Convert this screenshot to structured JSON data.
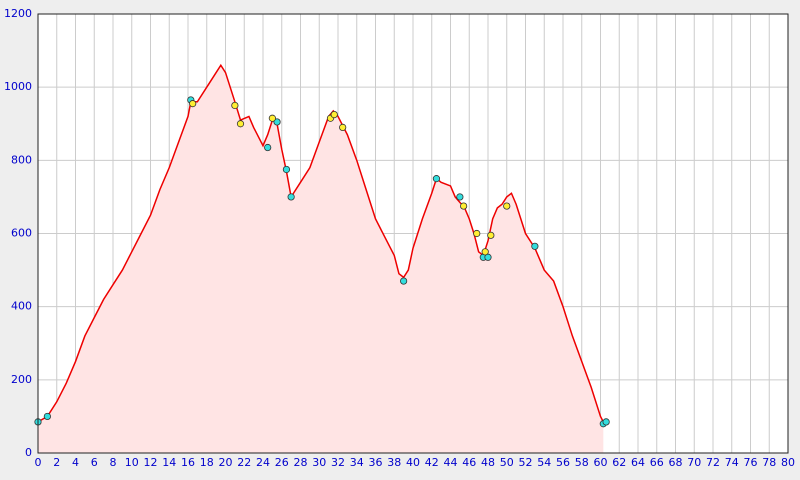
{
  "chart_data": {
    "type": "line",
    "x": [
      0,
      1,
      2,
      3,
      4,
      5,
      6,
      7,
      8,
      9,
      10,
      11,
      12,
      13,
      14,
      15,
      16,
      16.3,
      17,
      18,
      19,
      19.5,
      20,
      21,
      21.6,
      22.5,
      23,
      24,
      24.5,
      25,
      25.5,
      26,
      26.5,
      27,
      28,
      29,
      30,
      31,
      31.5,
      32,
      33,
      34,
      35,
      36,
      37,
      38,
      38.5,
      39,
      39.5,
      40,
      41,
      42,
      42.5,
      43,
      44,
      44.5,
      45,
      45.5,
      46,
      46.5,
      47,
      47.5,
      48,
      48.5,
      49,
      49.5,
      50,
      50.5,
      51,
      52,
      53,
      54,
      55,
      56,
      57,
      58,
      59,
      60,
      60.3
    ],
    "values": [
      85,
      100,
      140,
      190,
      250,
      320,
      370,
      420,
      460,
      500,
      550,
      600,
      650,
      720,
      780,
      850,
      920,
      960,
      960,
      1000,
      1040,
      1060,
      1040,
      960,
      910,
      920,
      890,
      840,
      870,
      910,
      900,
      830,
      770,
      700,
      740,
      780,
      850,
      920,
      935,
      920,
      870,
      800,
      720,
      640,
      590,
      540,
      490,
      480,
      500,
      560,
      640,
      710,
      750,
      740,
      730,
      700,
      685,
      670,
      640,
      600,
      550,
      540,
      580,
      640,
      670,
      680,
      700,
      710,
      680,
      600,
      560,
      500,
      470,
      400,
      320,
      250,
      180,
      100,
      85
    ],
    "color": "#ee0000",
    "fill_color": "#ffe4e4",
    "markers": [
      {
        "color": "#33dddd",
        "x": [
          0,
          1,
          16.3,
          24.5,
          25.5,
          26.5,
          27,
          39,
          42.5,
          45,
          47.5,
          48,
          53,
          60.3,
          60.6
        ],
        "values": [
          85,
          100,
          965,
          835,
          905,
          775,
          700,
          470,
          750,
          700,
          535,
          535,
          565,
          80,
          85
        ]
      },
      {
        "color": "#ffee33",
        "x": [
          16.5,
          21,
          21.6,
          25,
          31.2,
          31.6,
          32.5,
          45.4,
          46.8,
          47.7,
          48.3,
          50
        ],
        "values": [
          955,
          950,
          900,
          915,
          915,
          925,
          890,
          675,
          600,
          550,
          595,
          675
        ]
      }
    ],
    "xlim": [
      0,
      80
    ],
    "ylim": [
      0,
      1200
    ],
    "xticks": [
      0,
      2,
      4,
      6,
      8,
      10,
      12,
      14,
      16,
      18,
      20,
      22,
      24,
      26,
      28,
      30,
      32,
      34,
      36,
      38,
      40,
      42,
      44,
      46,
      48,
      50,
      52,
      54,
      56,
      58,
      60,
      62,
      64,
      66,
      68,
      70,
      72,
      74,
      76,
      78,
      80
    ],
    "yticks": [
      0,
      200,
      400,
      600,
      800,
      1000,
      1200
    ],
    "grid": true
  }
}
